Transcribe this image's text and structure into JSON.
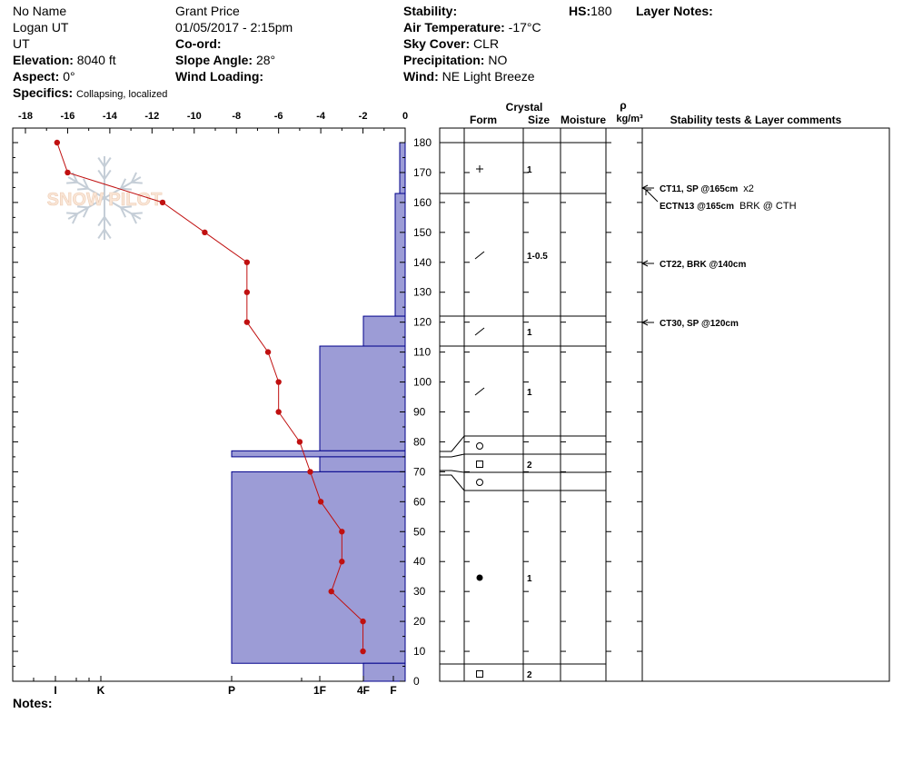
{
  "header": {
    "observer": "No Name",
    "location": "Logan UT",
    "state": "UT",
    "elevation_label": "Elevation:",
    "elevation_value": "8040 ft",
    "aspect_label": "Aspect:",
    "aspect_value": "0°",
    "specifics_label": "Specifics:",
    "specifics_value": "Collapsing, localized",
    "site_name": "Grant  Price",
    "datetime": "01/05/2017 - 2:15pm",
    "coord_label": "Co-ord:",
    "slope_label": "Slope Angle:",
    "slope_value": "28°",
    "wind_loading_label": "Wind Loading:",
    "stability_label": "Stability:",
    "air_temp_label": "Air Temperature:",
    "air_temp_value": "-17°C",
    "sky_label": "Sky Cover:",
    "sky_value": "CLR",
    "precip_label": "Precipitation:",
    "precip_value": "NO",
    "wind_label": "Wind:",
    "wind_value": "NE Light Breeze",
    "hs_label": "HS:",
    "hs_value": "180",
    "layer_notes_label": "Layer Notes:"
  },
  "notes_label": "Notes:",
  "watermark_text": "SNOW PILOT",
  "columns": {
    "crystal": "Crystal",
    "form": "Form",
    "size": "Size",
    "moisture": "Moisture",
    "rho": "ρ",
    "density_unit": "kg/m³",
    "stability": "Stability tests & Layer comments"
  },
  "chart_data": {
    "type": "line",
    "temp_axis": {
      "ticks": [
        "-18",
        "-16",
        "-14",
        "-12",
        "-10",
        "-8",
        "-6",
        "-4",
        "-2",
        "0"
      ],
      "range": [
        -18,
        0
      ]
    },
    "height_axis": {
      "ticks": [
        "180",
        "170",
        "160",
        "150",
        "140",
        "130",
        "120",
        "110",
        "100",
        "90",
        "80",
        "70",
        "60",
        "50",
        "40",
        "30",
        "20",
        "10",
        "0"
      ],
      "range": [
        0,
        183
      ]
    },
    "hardness_axis": {
      "labels": [
        "I",
        "K",
        "P",
        "1F",
        "4F",
        "F"
      ]
    },
    "temperature_profile": [
      {
        "depth": 180,
        "temp": -16.5
      },
      {
        "depth": 170,
        "temp": -16
      },
      {
        "depth": 160,
        "temp": -11.5
      },
      {
        "depth": 150,
        "temp": -9.5
      },
      {
        "depth": 140,
        "temp": -7.5
      },
      {
        "depth": 130,
        "temp": -7.5
      },
      {
        "depth": 120,
        "temp": -7.5
      },
      {
        "depth": 110,
        "temp": -6.5
      },
      {
        "depth": 100,
        "temp": -6
      },
      {
        "depth": 90,
        "temp": -6
      },
      {
        "depth": 80,
        "temp": -5
      },
      {
        "depth": 70,
        "temp": -4.5
      },
      {
        "depth": 60,
        "temp": -4
      },
      {
        "depth": 50,
        "temp": -3
      },
      {
        "depth": 40,
        "temp": -3
      },
      {
        "depth": 30,
        "temp": -3.5
      },
      {
        "depth": 20,
        "temp": -2
      },
      {
        "depth": 10,
        "temp": -2
      }
    ],
    "hardness_layers": [
      {
        "top": 180,
        "bottom": 163,
        "hardness": "F"
      },
      {
        "top": 163,
        "bottom": 122,
        "hardness": "F+"
      },
      {
        "top": 122,
        "bottom": 112,
        "hardness": "4F"
      },
      {
        "top": 112,
        "bottom": 77,
        "hardness": "1F"
      },
      {
        "top": 77,
        "bottom": 75,
        "hardness": "P"
      },
      {
        "top": 75,
        "bottom": 70,
        "hardness": "1F"
      },
      {
        "top": 70,
        "bottom": 6,
        "hardness": "P"
      },
      {
        "top": 6,
        "bottom": 0,
        "hardness": "4F"
      }
    ],
    "layers": [
      {
        "top": 180,
        "bottom": 163,
        "form": "+",
        "size": "1"
      },
      {
        "top": 163,
        "bottom": 122,
        "form": "/",
        "size": "1-0.5"
      },
      {
        "top": 122,
        "bottom": 112,
        "form": "/",
        "size": "1"
      },
      {
        "top": 112,
        "bottom": 82,
        "form": "/",
        "size": "1"
      },
      {
        "top": 82,
        "bottom": 76,
        "form": "o",
        "size": ""
      },
      {
        "top": 76,
        "bottom": 70,
        "form": "□",
        "size": "2"
      },
      {
        "top": 70,
        "bottom": 64,
        "form": "o",
        "size": ""
      },
      {
        "top": 64,
        "bottom": 6,
        "form": "●",
        "size": "1"
      },
      {
        "top": 6,
        "bottom": 0,
        "form": "□",
        "size": "2"
      }
    ],
    "stability_tests": [
      {
        "depth": 165,
        "bold": "CT11, SP @165cm",
        "plain": "x2"
      },
      {
        "depth": 165,
        "bold": "ECTN13 @165cm",
        "plain": "BRK @ CTH"
      },
      {
        "depth": 140,
        "bold": "CT22, BRK @140cm",
        "plain": ""
      },
      {
        "depth": 120,
        "bold": "CT30, SP @120cm",
        "plain": ""
      }
    ],
    "colors": {
      "hardness_fill": "#9c9cd6",
      "hardness_stroke": "#00008b",
      "temp_line": "#c01010"
    }
  }
}
